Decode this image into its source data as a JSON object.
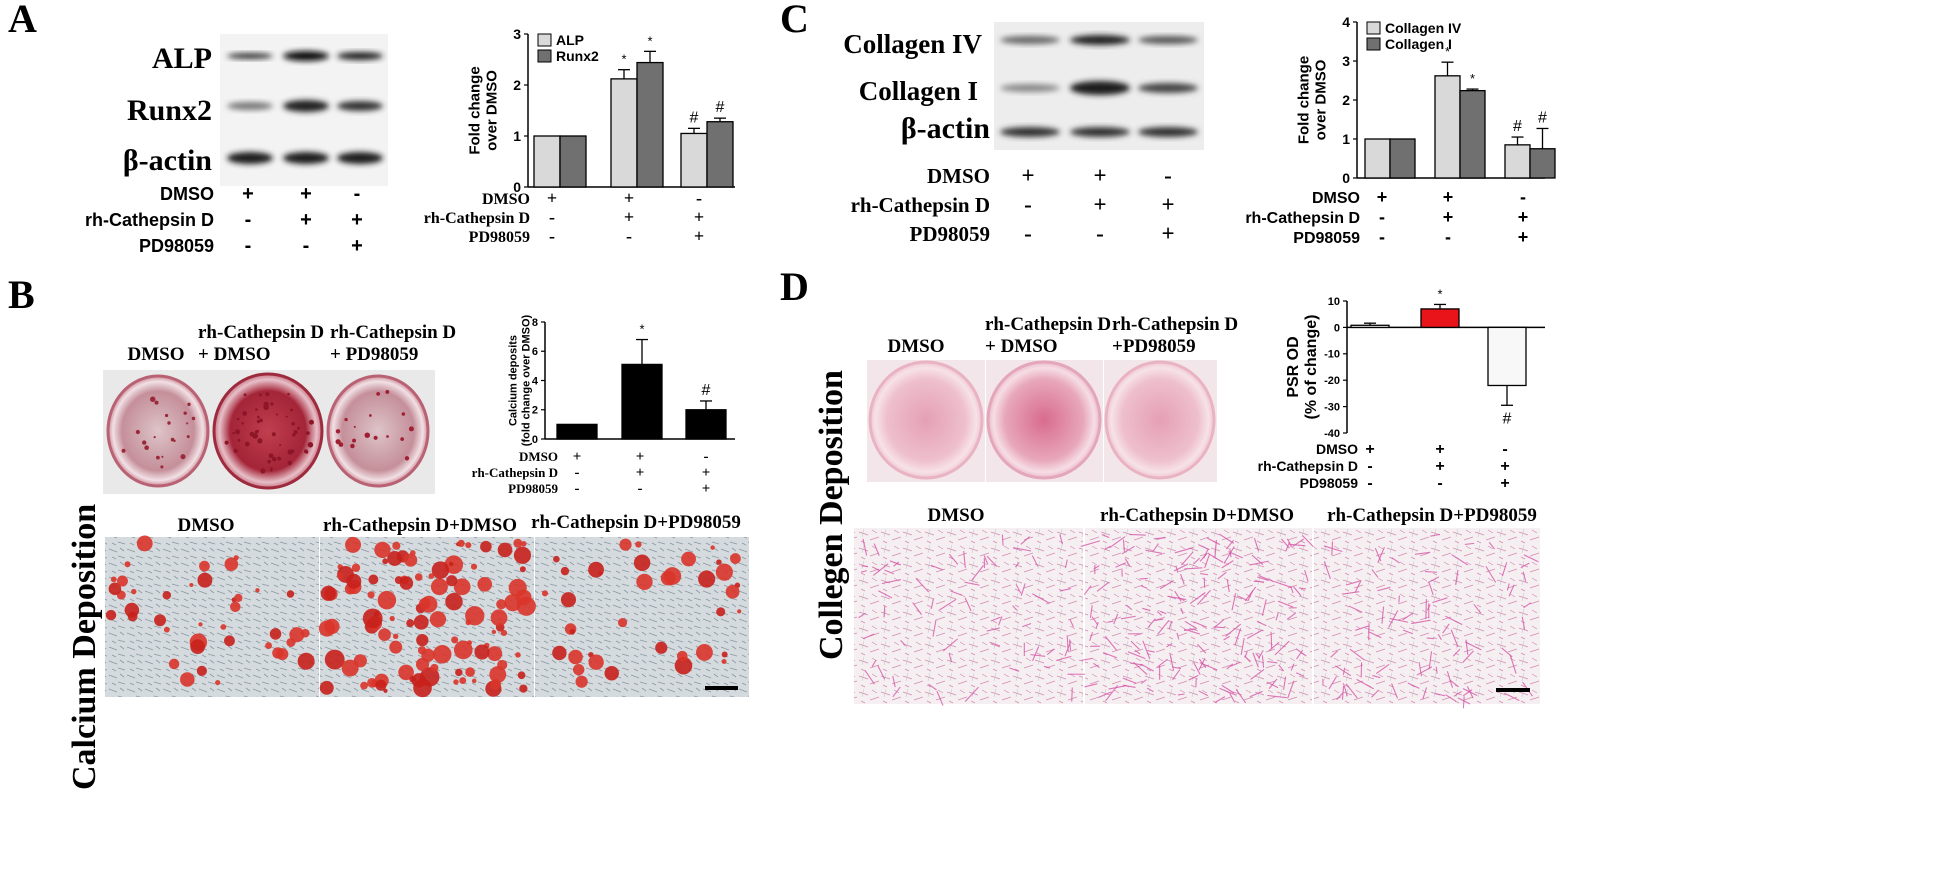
{
  "panels": {
    "A": {
      "letter": "A",
      "blot_labels": [
        "ALP",
        "Runx2",
        "β-actin"
      ],
      "conditions": [
        {
          "label": "DMSO",
          "signs": [
            "+",
            "+",
            "-"
          ]
        },
        {
          "label": "rh-Cathepsin D",
          "signs": [
            "-",
            "+",
            "+"
          ]
        },
        {
          "label": "PD98059",
          "signs": [
            "-",
            "-",
            "+"
          ]
        }
      ],
      "chart_conditions": [
        {
          "label": "DMSO",
          "signs": [
            "+",
            "+",
            "-"
          ]
        },
        {
          "label": "rh-Cathepsin D",
          "signs": [
            "-",
            "+",
            "+"
          ]
        },
        {
          "label": "PD98059",
          "signs": [
            "-",
            "-",
            "+"
          ]
        }
      ]
    },
    "B": {
      "letter": "B",
      "side_label": "Calcium Deposition",
      "well_labels": [
        "DMSO",
        "rh-Cathepsin D\n+ DMSO",
        "rh-Cathepsin D\n+ PD98059"
      ],
      "micro_labels": [
        "DMSO",
        "rh-Cathepsin D+DMSO",
        "rh-Cathepsin D+PD98059"
      ],
      "chart_conditions": [
        {
          "label": "DMSO",
          "signs": [
            "+",
            "+",
            "-"
          ]
        },
        {
          "label": "rh-Cathepsin D",
          "signs": [
            "-",
            "+",
            "+"
          ]
        },
        {
          "label": "PD98059",
          "signs": [
            "-",
            "-",
            "+"
          ]
        }
      ]
    },
    "C": {
      "letter": "C",
      "blot_labels": [
        "Collagen IV",
        "Collagen I",
        "β-actin"
      ],
      "conditions": [
        {
          "label": "DMSO",
          "signs": [
            "+",
            "+",
            "-"
          ]
        },
        {
          "label": "rh-Cathepsin D",
          "signs": [
            "-",
            "+",
            "+"
          ]
        },
        {
          "label": "PD98059",
          "signs": [
            "-",
            "-",
            "+"
          ]
        }
      ],
      "chart_conditions": [
        {
          "label": "DMSO",
          "signs": [
            "+",
            "+",
            "-"
          ]
        },
        {
          "label": "rh-Cathepsin D",
          "signs": [
            "-",
            "+",
            "+"
          ]
        },
        {
          "label": "PD98059",
          "signs": [
            "-",
            "-",
            "+"
          ]
        }
      ]
    },
    "D": {
      "letter": "D",
      "side_label": "Collegen Deposition",
      "well_labels": [
        "DMSO",
        "rh-Cathepsin D\n+ DMSO",
        "rh-Cathepsin D\n+PD98059"
      ],
      "micro_labels": [
        "DMSO",
        "rh-Cathepsin D+DMSO",
        "rh-Cathepsin D+PD98059"
      ],
      "chart_conditions": [
        {
          "label": "DMSO",
          "signs": [
            "+",
            "+",
            "-"
          ]
        },
        {
          "label": "rh-Cathepsin D",
          "signs": [
            "-",
            "+",
            "+"
          ]
        },
        {
          "label": "PD98059",
          "signs": [
            "-",
            "-",
            "+"
          ]
        }
      ]
    }
  },
  "chart_data": [
    {
      "id": "A",
      "type": "bar",
      "ylabel": "Fold change over DMSO",
      "ylim": [
        0,
        3
      ],
      "yticks": [
        "0",
        "1",
        "2",
        "3"
      ],
      "legend_position": "top-left",
      "series": [
        {
          "name": "ALP",
          "color": "#d9d9d9",
          "values": [
            1.0,
            2.12,
            1.05
          ],
          "errors": [
            0,
            0.18,
            0.1
          ],
          "marks": [
            "",
            "*",
            "#"
          ]
        },
        {
          "name": "Runx2",
          "color": "#707070",
          "values": [
            1.0,
            2.44,
            1.28
          ],
          "errors": [
            0,
            0.22,
            0.07
          ],
          "marks": [
            "",
            "*",
            "#"
          ]
        }
      ]
    },
    {
      "id": "B",
      "type": "bar",
      "ylabel": "Calcium deposits (fold change over DMSO)",
      "ylim": [
        0,
        8
      ],
      "yticks": [
        "0",
        "2",
        "4",
        "6",
        "8"
      ],
      "series": [
        {
          "color": "#000000",
          "values": [
            1.0,
            5.1,
            2.0
          ],
          "errors": [
            0,
            1.7,
            0.6
          ],
          "marks": [
            "",
            "*",
            "#"
          ]
        }
      ]
    },
    {
      "id": "C",
      "type": "bar",
      "ylabel": "Fold change over DMSO",
      "ylim": [
        0,
        4
      ],
      "yticks": [
        "0",
        "1",
        "2",
        "3",
        "4"
      ],
      "legend_position": "top-left",
      "series": [
        {
          "name": "Collagen IV",
          "color": "#d9d9d9",
          "values": [
            1.0,
            2.62,
            0.85
          ],
          "errors": [
            0,
            0.35,
            0.2
          ],
          "marks": [
            "",
            "*",
            "#"
          ]
        },
        {
          "name": "Collagen I",
          "color": "#707070",
          "values": [
            1.0,
            2.24,
            0.75
          ],
          "errors": [
            0,
            0.04,
            0.52
          ],
          "marks": [
            "",
            "*",
            "#"
          ]
        }
      ]
    },
    {
      "id": "D",
      "type": "bar",
      "ylabel": "PSR OD (% of change)",
      "ylim": [
        -40,
        10
      ],
      "yticks": [
        "10",
        "0",
        "-10",
        "-20",
        "-30",
        "-40"
      ],
      "series": [
        {
          "colors": [
            "#ffffff",
            "#e8141a",
            "#f8f8f8"
          ],
          "values": [
            0.8,
            7.0,
            -22.0
          ],
          "errors": [
            0.8,
            1.7,
            7.5
          ],
          "marks": [
            "",
            "*",
            "#"
          ]
        }
      ]
    }
  ]
}
